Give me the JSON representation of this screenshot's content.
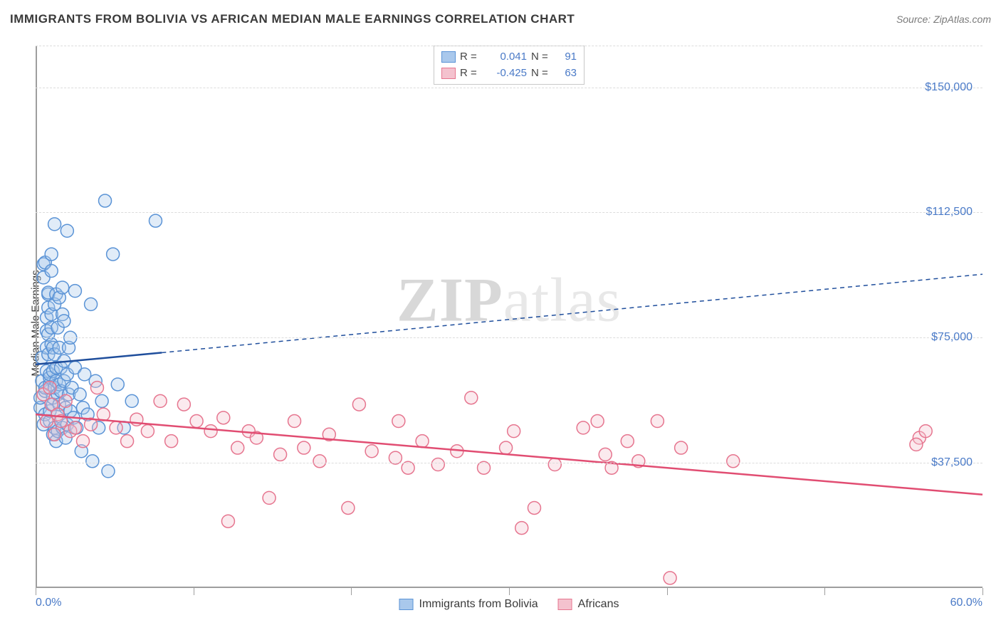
{
  "title": "IMMIGRANTS FROM BOLIVIA VS AFRICAN MEDIAN MALE EARNINGS CORRELATION CHART",
  "source": "Source: ZipAtlas.com",
  "ylabel": "Median Male Earnings",
  "watermark_a": "ZIP",
  "watermark_b": "atlas",
  "chart": {
    "type": "scatter",
    "background_color": "#ffffff",
    "grid_color": "#dcdcdc",
    "axis_color": "#9e9e9e",
    "label_color": "#4a7ac7",
    "text_color": "#3a3a3a",
    "title_fontsize": 17,
    "label_fontsize": 15,
    "tick_fontsize": 16,
    "marker_radius": 9,
    "marker_fill_opacity": 0.35,
    "marker_stroke_width": 1.5,
    "regression_solid_width": 2.5,
    "regression_dash_width": 1.5,
    "regression_dash_pattern": "6 5",
    "xlim": [
      0,
      60
    ],
    "ylim": [
      0,
      162500
    ],
    "xtick_positions": [
      0,
      10,
      20,
      30,
      40,
      50,
      60
    ],
    "xtick_labels": {
      "0": "0.0%",
      "60": "60.0%"
    },
    "ytick_positions": [
      37500,
      75000,
      112500,
      150000
    ],
    "ytick_labels": {
      "37500": "$37,500",
      "75000": "$75,000",
      "112500": "$112,500",
      "150000": "$150,000"
    }
  },
  "legend_top": {
    "r_label": "R =",
    "n_label": "N =",
    "series": [
      {
        "r": "0.041",
        "n": "91",
        "fill": "#a9c8ec",
        "stroke": "#5a93d6"
      },
      {
        "r": "-0.425",
        "n": "63",
        "fill": "#f4c2ce",
        "stroke": "#e6758f"
      }
    ]
  },
  "legend_bottom": {
    "items": [
      {
        "label": "Immigrants from Bolivia",
        "fill": "#a9c8ec",
        "stroke": "#5a93d6"
      },
      {
        "label": "Africans",
        "fill": "#f4c2ce",
        "stroke": "#e6758f"
      }
    ]
  },
  "series": [
    {
      "name": "Immigrants from Bolivia",
      "color_fill": "#a9c8ec",
      "color_stroke": "#5a93d6",
      "regression_color": "#1f4e9c",
      "regression": {
        "x1": 0,
        "y1": 67000,
        "x2_solid": 8,
        "y2_solid": 70500,
        "x2": 60,
        "y2": 94000
      },
      "points": [
        [
          0.3,
          54000
        ],
        [
          0.3,
          57000
        ],
        [
          0.4,
          62000
        ],
        [
          0.4,
          69000
        ],
        [
          0.5,
          49000
        ],
        [
          0.5,
          93000
        ],
        [
          0.5,
          97000
        ],
        [
          0.6,
          59000
        ],
        [
          0.6,
          60000
        ],
        [
          0.6,
          97500
        ],
        [
          0.6,
          52000
        ],
        [
          0.7,
          81000
        ],
        [
          0.7,
          77000
        ],
        [
          0.7,
          72000
        ],
        [
          0.7,
          65000
        ],
        [
          0.8,
          70000
        ],
        [
          0.8,
          76000
        ],
        [
          0.8,
          84000
        ],
        [
          0.8,
          88000
        ],
        [
          0.8,
          88500
        ],
        [
          0.9,
          50000
        ],
        [
          0.9,
          53000
        ],
        [
          0.9,
          61000
        ],
        [
          0.9,
          63000
        ],
        [
          0.9,
          64000
        ],
        [
          1.0,
          73000
        ],
        [
          1.0,
          78000
        ],
        [
          1.0,
          82000
        ],
        [
          1.0,
          95000
        ],
        [
          1.0,
          100000
        ],
        [
          1.1,
          46000
        ],
        [
          1.1,
          55000
        ],
        [
          1.1,
          57000
        ],
        [
          1.1,
          65000
        ],
        [
          1.1,
          72000
        ],
        [
          1.2,
          48000
        ],
        [
          1.2,
          60000
        ],
        [
          1.2,
          70000
        ],
        [
          1.2,
          85000
        ],
        [
          1.2,
          109000
        ],
        [
          1.3,
          44000
        ],
        [
          1.3,
          62000
        ],
        [
          1.3,
          66000
        ],
        [
          1.3,
          88000
        ],
        [
          1.4,
          47000
        ],
        [
          1.4,
          52000
        ],
        [
          1.4,
          58000
        ],
        [
          1.4,
          78000
        ],
        [
          1.5,
          55000
        ],
        [
          1.5,
          61000
        ],
        [
          1.5,
          72000
        ],
        [
          1.5,
          87000
        ],
        [
          1.6,
          59000
        ],
        [
          1.6,
          66000
        ],
        [
          1.7,
          48000
        ],
        [
          1.7,
          82000
        ],
        [
          1.7,
          90000
        ],
        [
          1.8,
          62000
        ],
        [
          1.8,
          68000
        ],
        [
          1.8,
          80000
        ],
        [
          1.9,
          45000
        ],
        [
          1.9,
          54000
        ],
        [
          2.0,
          49000
        ],
        [
          2.0,
          64000
        ],
        [
          2.0,
          107000
        ],
        [
          2.1,
          58000
        ],
        [
          2.1,
          72000
        ],
        [
          2.2,
          53000
        ],
        [
          2.2,
          75000
        ],
        [
          2.3,
          60000
        ],
        [
          2.4,
          51000
        ],
        [
          2.5,
          66000
        ],
        [
          2.5,
          89000
        ],
        [
          2.6,
          48000
        ],
        [
          2.8,
          58000
        ],
        [
          2.9,
          41000
        ],
        [
          3.0,
          54000
        ],
        [
          3.1,
          64000
        ],
        [
          3.3,
          52000
        ],
        [
          3.5,
          85000
        ],
        [
          3.6,
          38000
        ],
        [
          3.8,
          62000
        ],
        [
          4.0,
          48000
        ],
        [
          4.2,
          56000
        ],
        [
          4.4,
          116000
        ],
        [
          4.6,
          35000
        ],
        [
          4.9,
          100000
        ],
        [
          5.2,
          61000
        ],
        [
          5.6,
          48000
        ],
        [
          6.1,
          56000
        ],
        [
          7.6,
          110000
        ]
      ]
    },
    {
      "name": "Africans",
      "color_fill": "#f4c2ce",
      "color_stroke": "#e6758f",
      "regression_color": "#e14d72",
      "regression": {
        "x1": 0,
        "y1": 52000,
        "x2_solid": 60,
        "y2_solid": 28000,
        "x2": 60,
        "y2": 28000
      },
      "points": [
        [
          0.5,
          58000
        ],
        [
          0.7,
          50000
        ],
        [
          0.9,
          60000
        ],
        [
          1.0,
          55000
        ],
        [
          1.2,
          46000
        ],
        [
          1.4,
          52000
        ],
        [
          1.6,
          50000
        ],
        [
          1.9,
          56000
        ],
        [
          2.2,
          47000
        ],
        [
          2.5,
          48000
        ],
        [
          3.0,
          44000
        ],
        [
          3.5,
          49000
        ],
        [
          3.9,
          60000
        ],
        [
          4.3,
          52000
        ],
        [
          5.1,
          48000
        ],
        [
          5.8,
          44000
        ],
        [
          6.4,
          50500
        ],
        [
          7.1,
          47000
        ],
        [
          7.9,
          56000
        ],
        [
          8.6,
          44000
        ],
        [
          9.4,
          55000
        ],
        [
          10.2,
          50000
        ],
        [
          11.1,
          47000
        ],
        [
          11.9,
          51000
        ],
        [
          12.2,
          20000
        ],
        [
          12.8,
          42000
        ],
        [
          13.5,
          47000
        ],
        [
          14.0,
          45000
        ],
        [
          14.8,
          27000
        ],
        [
          15.5,
          40000
        ],
        [
          16.4,
          50000
        ],
        [
          17.0,
          42000
        ],
        [
          18.0,
          38000
        ],
        [
          18.6,
          46000
        ],
        [
          19.8,
          24000
        ],
        [
          20.5,
          55000
        ],
        [
          21.3,
          41000
        ],
        [
          22.8,
          39000
        ],
        [
          23.0,
          50000
        ],
        [
          23.6,
          36000
        ],
        [
          24.5,
          44000
        ],
        [
          25.5,
          37000
        ],
        [
          26.7,
          41000
        ],
        [
          27.6,
          57000
        ],
        [
          28.4,
          36000
        ],
        [
          29.8,
          42000
        ],
        [
          30.3,
          47000
        ],
        [
          30.8,
          18000
        ],
        [
          31.6,
          24000
        ],
        [
          32.9,
          37000
        ],
        [
          34.7,
          48000
        ],
        [
          35.6,
          50000
        ],
        [
          36.1,
          40000
        ],
        [
          36.5,
          36000
        ],
        [
          37.5,
          44000
        ],
        [
          38.2,
          38000
        ],
        [
          39.4,
          50000
        ],
        [
          40.2,
          3000
        ],
        [
          40.9,
          42000
        ],
        [
          44.2,
          38000
        ],
        [
          56.0,
          45000
        ],
        [
          56.4,
          47000
        ],
        [
          55.8,
          43000
        ]
      ]
    }
  ]
}
